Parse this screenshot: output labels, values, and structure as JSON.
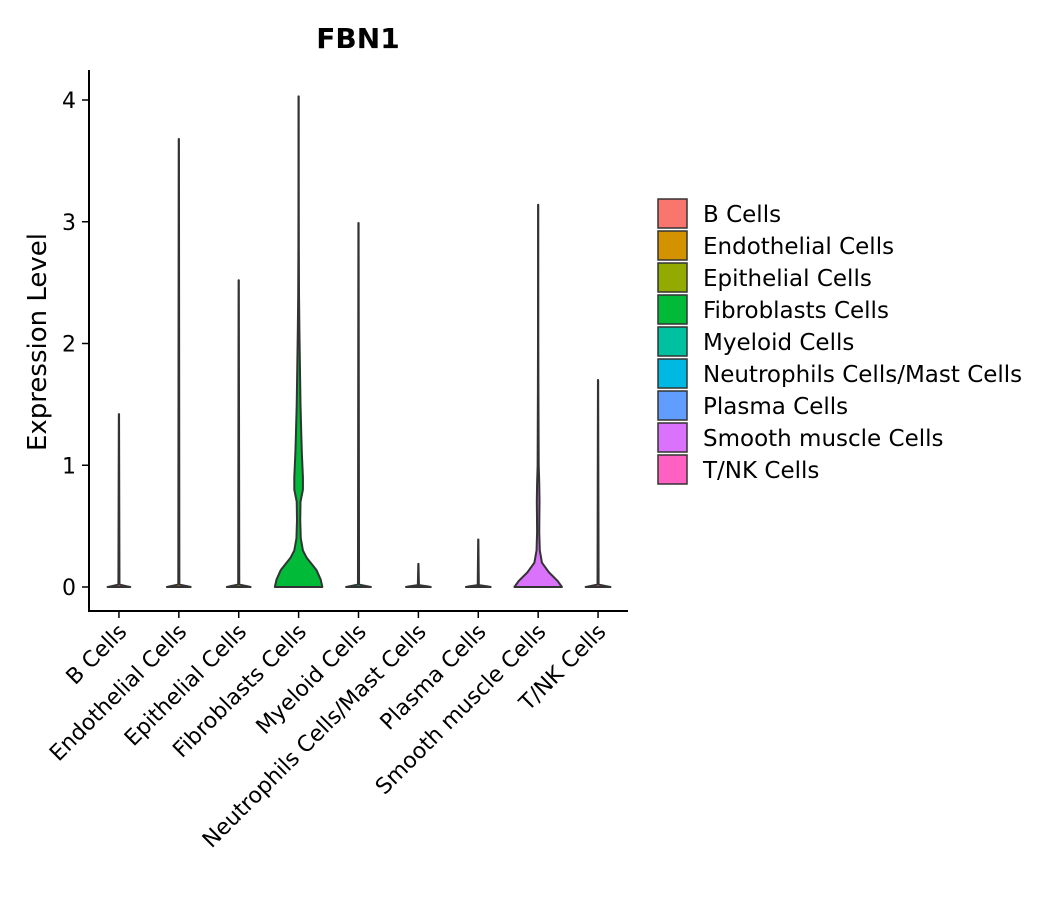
{
  "chart_data": {
    "type": "violin",
    "title": "FBN1",
    "xlabel": "",
    "ylabel": "Expression Level",
    "ylim": [
      -0.2,
      4.25
    ],
    "yticks": [
      0,
      1,
      2,
      3,
      4
    ],
    "ytick_labels": [
      "0",
      "1",
      "2",
      "3",
      "4"
    ],
    "grid": false,
    "legend_position": "right",
    "categories": [
      "B Cells",
      "Endothelial Cells",
      "Epithelial Cells",
      "Fibroblasts Cells",
      "Myeloid Cells",
      "Neutrophils Cells/Mast Cells",
      "Plasma Cells",
      "Smooth muscle Cells",
      "T/NK Cells"
    ],
    "colors": [
      "#F8766D",
      "#D39200",
      "#93AA00",
      "#00BA38",
      "#00C19F",
      "#00B9E3",
      "#619CFF",
      "#DB72FB",
      "#FF61C3"
    ],
    "max_values": [
      1.42,
      3.68,
      2.52,
      4.03,
      2.99,
      0.19,
      0.39,
      3.14,
      1.7
    ],
    "profiles": [
      [
        [
          0,
          0.42
        ],
        [
          0.005,
          0.3
        ],
        [
          0.02,
          0.02
        ],
        [
          1.42,
          0.004
        ]
      ],
      [
        [
          0,
          0.44
        ],
        [
          0.005,
          0.34
        ],
        [
          0.02,
          0.02
        ],
        [
          3.68,
          0.004
        ]
      ],
      [
        [
          0,
          0.44
        ],
        [
          0.005,
          0.34
        ],
        [
          0.02,
          0.02
        ],
        [
          2.52,
          0.004
        ]
      ],
      [
        [
          0,
          0.88
        ],
        [
          0.06,
          0.82
        ],
        [
          0.14,
          0.66
        ],
        [
          0.24,
          0.3
        ],
        [
          0.3,
          0.16
        ],
        [
          0.4,
          0.08
        ],
        [
          0.55,
          0.06
        ],
        [
          0.7,
          0.07
        ],
        [
          0.8,
          0.16
        ],
        [
          0.9,
          0.16
        ],
        [
          1.0,
          0.14
        ],
        [
          1.1,
          0.12
        ],
        [
          1.25,
          0.1
        ],
        [
          1.5,
          0.07
        ],
        [
          1.8,
          0.05
        ],
        [
          2.1,
          0.03
        ],
        [
          2.4,
          0.015
        ],
        [
          2.8,
          0.008
        ],
        [
          3.3,
          0.005
        ],
        [
          4.03,
          0.004
        ]
      ],
      [
        [
          0,
          0.46
        ],
        [
          0.005,
          0.34
        ],
        [
          0.02,
          0.02
        ],
        [
          2.99,
          0.004
        ]
      ],
      [
        [
          0,
          0.46
        ],
        [
          0.005,
          0.34
        ],
        [
          0.015,
          0.02
        ],
        [
          0.19,
          0.004
        ]
      ],
      [
        [
          0,
          0.46
        ],
        [
          0.005,
          0.34
        ],
        [
          0.015,
          0.02
        ],
        [
          0.39,
          0.004
        ]
      ],
      [
        [
          0,
          0.88
        ],
        [
          0.05,
          0.72
        ],
        [
          0.12,
          0.4
        ],
        [
          0.2,
          0.14
        ],
        [
          0.3,
          0.06
        ],
        [
          0.45,
          0.04
        ],
        [
          0.6,
          0.045
        ],
        [
          0.7,
          0.05
        ],
        [
          0.85,
          0.04
        ],
        [
          1.0,
          0.02
        ],
        [
          1.3,
          0.015
        ],
        [
          1.6,
          0.01
        ],
        [
          2.0,
          0.006
        ],
        [
          3.14,
          0.004
        ]
      ],
      [
        [
          0,
          0.46
        ],
        [
          0.005,
          0.34
        ],
        [
          0.02,
          0.02
        ],
        [
          1.7,
          0.004
        ]
      ]
    ]
  }
}
